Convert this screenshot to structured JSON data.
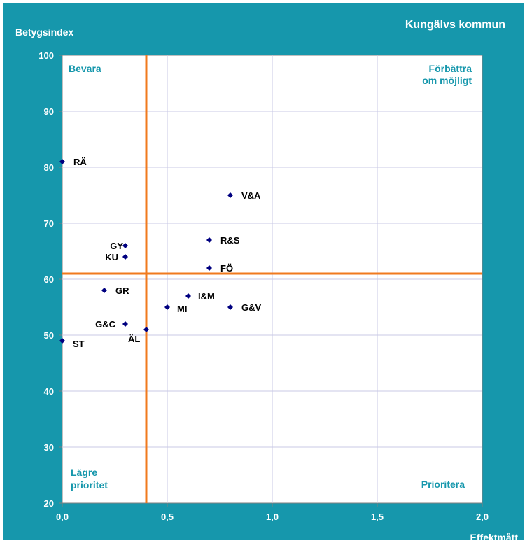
{
  "chart_data": {
    "type": "scatter",
    "title": "Kungälvs kommun",
    "xlabel": "Effektmått",
    "ylabel": "Betygsindex",
    "xlim": [
      0.0,
      2.0
    ],
    "ylim": [
      20,
      100
    ],
    "x_ticks": [
      "0,0",
      "0,5",
      "1,0",
      "1,5",
      "2,0"
    ],
    "y_ticks": [
      "20",
      "30",
      "40",
      "50",
      "60",
      "70",
      "80",
      "90",
      "100"
    ],
    "grid": true,
    "quadrant_lines": {
      "x": 0.4,
      "y": 61
    },
    "quadrant_labels": {
      "top_left": [
        "Bevara"
      ],
      "top_right": [
        "Förbättra",
        "om möjligt"
      ],
      "bottom_left": [
        "Lägre",
        "prioritet"
      ],
      "bottom_right": [
        "Prioritera"
      ]
    },
    "points": [
      {
        "label": "RÄ",
        "x": 0.0,
        "y": 81
      },
      {
        "label": "V&A",
        "x": 0.8,
        "y": 75
      },
      {
        "label": "R&S",
        "x": 0.7,
        "y": 67
      },
      {
        "label": "GY",
        "x": 0.3,
        "y": 66
      },
      {
        "label": "KU",
        "x": 0.3,
        "y": 64
      },
      {
        "label": "FÖ",
        "x": 0.7,
        "y": 62
      },
      {
        "label": "GR",
        "x": 0.2,
        "y": 58
      },
      {
        "label": "I&M",
        "x": 0.6,
        "y": 57
      },
      {
        "label": "MI",
        "x": 0.5,
        "y": 55
      },
      {
        "label": "G&V",
        "x": 0.8,
        "y": 55
      },
      {
        "label": "G&C",
        "x": 0.3,
        "y": 52
      },
      {
        "label": "ÄL",
        "x": 0.4,
        "y": 51
      },
      {
        "label": "ST",
        "x": 0.0,
        "y": 49
      }
    ]
  },
  "colors": {
    "background": "#1697AC",
    "plot_area": "#FFFFFF",
    "grid": "#C8C8E6",
    "quadrant_line": "#F07A1E",
    "marker": "#000080",
    "quadrant_text": "#1697AC",
    "axis_text": "#FFFFFF",
    "point_label": "#000000"
  }
}
